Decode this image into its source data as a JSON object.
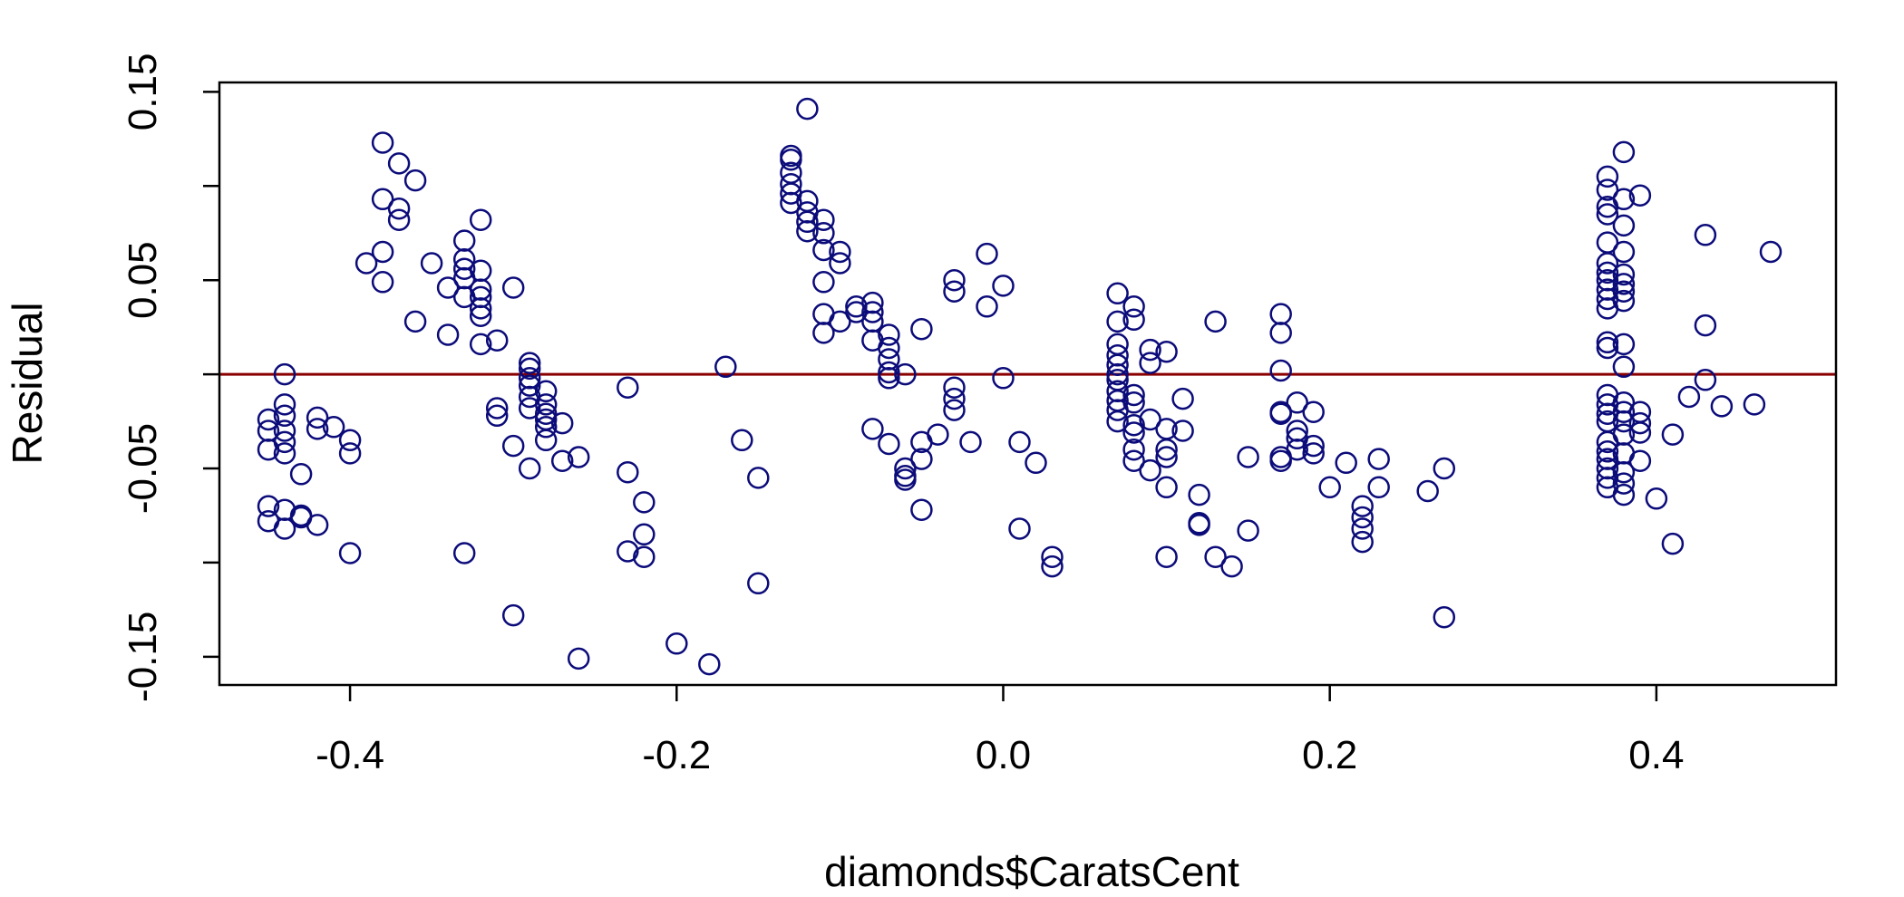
{
  "chart_data": {
    "type": "scatter",
    "title": "",
    "xlabel": "diamonds$CaratsCent",
    "ylabel": "Residual",
    "xlim": [
      -0.48,
      0.51
    ],
    "ylim": [
      -0.165,
      0.155
    ],
    "x_ticks": [
      -0.4,
      -0.2,
      0.0,
      0.2,
      0.4
    ],
    "x_tick_labels": [
      "-0.4",
      "-0.2",
      "0.0",
      "0.2",
      "0.4"
    ],
    "y_ticks": [
      -0.15,
      -0.1,
      -0.05,
      0.0,
      0.05,
      0.1,
      0.15
    ],
    "y_tick_labels": [
      "-0.15",
      "",
      "-0.05",
      "",
      "0.05",
      "",
      "0.15"
    ],
    "grid": false,
    "legend": "none",
    "colors": {
      "points": "#0b0b7a",
      "reference_line": "#8b0000",
      "axes": "#000000"
    },
    "reference_line": {
      "y": 0
    },
    "points": [
      [
        -0.45,
        -0.024
      ],
      [
        -0.45,
        -0.03
      ],
      [
        -0.45,
        -0.04
      ],
      [
        -0.45,
        -0.07
      ],
      [
        -0.45,
        -0.078
      ],
      [
        -0.44,
        0.0
      ],
      [
        -0.44,
        -0.016
      ],
      [
        -0.44,
        -0.022
      ],
      [
        -0.44,
        -0.03
      ],
      [
        -0.44,
        -0.036
      ],
      [
        -0.44,
        -0.042
      ],
      [
        -0.44,
        -0.072
      ],
      [
        -0.44,
        -0.082
      ],
      [
        -0.43,
        -0.053
      ],
      [
        -0.43,
        -0.075
      ],
      [
        -0.43,
        -0.076
      ],
      [
        -0.42,
        -0.023
      ],
      [
        -0.42,
        -0.029
      ],
      [
        -0.42,
        -0.08
      ],
      [
        -0.41,
        -0.028
      ],
      [
        -0.4,
        -0.035
      ],
      [
        -0.4,
        -0.042
      ],
      [
        -0.4,
        -0.095
      ],
      [
        -0.39,
        0.059
      ],
      [
        -0.38,
        0.123
      ],
      [
        -0.38,
        0.093
      ],
      [
        -0.38,
        0.065
      ],
      [
        -0.38,
        0.049
      ],
      [
        -0.37,
        0.112
      ],
      [
        -0.37,
        0.088
      ],
      [
        -0.37,
        0.082
      ],
      [
        -0.36,
        0.103
      ],
      [
        -0.36,
        0.028
      ],
      [
        -0.35,
        0.059
      ],
      [
        -0.34,
        0.046
      ],
      [
        -0.34,
        0.021
      ],
      [
        -0.33,
        0.071
      ],
      [
        -0.33,
        0.061
      ],
      [
        -0.33,
        0.056
      ],
      [
        -0.33,
        0.051
      ],
      [
        -0.33,
        0.041
      ],
      [
        -0.33,
        -0.095
      ],
      [
        -0.32,
        0.082
      ],
      [
        -0.32,
        0.055
      ],
      [
        -0.32,
        0.045
      ],
      [
        -0.32,
        0.041
      ],
      [
        -0.32,
        0.035
      ],
      [
        -0.32,
        0.031
      ],
      [
        -0.32,
        0.016
      ],
      [
        -0.31,
        0.018
      ],
      [
        -0.31,
        -0.018
      ],
      [
        -0.31,
        -0.022
      ],
      [
        -0.3,
        0.046
      ],
      [
        -0.3,
        -0.038
      ],
      [
        -0.3,
        -0.128
      ],
      [
        -0.29,
        0.006
      ],
      [
        -0.29,
        0.003
      ],
      [
        -0.29,
        -0.002
      ],
      [
        -0.29,
        -0.006
      ],
      [
        -0.29,
        -0.012
      ],
      [
        -0.29,
        -0.018
      ],
      [
        -0.29,
        -0.05
      ],
      [
        -0.28,
        -0.009
      ],
      [
        -0.28,
        -0.016
      ],
      [
        -0.28,
        -0.021
      ],
      [
        -0.28,
        -0.024
      ],
      [
        -0.28,
        -0.028
      ],
      [
        -0.28,
        -0.035
      ],
      [
        -0.27,
        -0.026
      ],
      [
        -0.27,
        -0.046
      ],
      [
        -0.26,
        -0.044
      ],
      [
        -0.26,
        -0.151
      ],
      [
        -0.23,
        -0.007
      ],
      [
        -0.23,
        -0.052
      ],
      [
        -0.23,
        -0.094
      ],
      [
        -0.22,
        -0.068
      ],
      [
        -0.22,
        -0.085
      ],
      [
        -0.22,
        -0.097
      ],
      [
        -0.2,
        -0.143
      ],
      [
        -0.18,
        -0.154
      ],
      [
        -0.17,
        0.004
      ],
      [
        -0.16,
        -0.035
      ],
      [
        -0.15,
        -0.055
      ],
      [
        -0.15,
        -0.111
      ],
      [
        -0.13,
        0.116
      ],
      [
        -0.13,
        0.114
      ],
      [
        -0.13,
        0.107
      ],
      [
        -0.13,
        0.101
      ],
      [
        -0.13,
        0.096
      ],
      [
        -0.13,
        0.091
      ],
      [
        -0.12,
        0.141
      ],
      [
        -0.12,
        0.092
      ],
      [
        -0.12,
        0.086
      ],
      [
        -0.12,
        0.081
      ],
      [
        -0.12,
        0.076
      ],
      [
        -0.11,
        0.082
      ],
      [
        -0.11,
        0.075
      ],
      [
        -0.11,
        0.066
      ],
      [
        -0.11,
        0.049
      ],
      [
        -0.11,
        0.032
      ],
      [
        -0.11,
        0.022
      ],
      [
        -0.1,
        0.065
      ],
      [
        -0.1,
        0.059
      ],
      [
        -0.1,
        0.028
      ],
      [
        -0.09,
        0.036
      ],
      [
        -0.09,
        0.033
      ],
      [
        -0.08,
        0.038
      ],
      [
        -0.08,
        0.033
      ],
      [
        -0.08,
        0.028
      ],
      [
        -0.08,
        0.018
      ],
      [
        -0.08,
        -0.029
      ],
      [
        -0.07,
        0.021
      ],
      [
        -0.07,
        0.014
      ],
      [
        -0.07,
        0.008
      ],
      [
        -0.07,
        0.001
      ],
      [
        -0.07,
        -0.002
      ],
      [
        -0.07,
        -0.037
      ],
      [
        -0.06,
        0.0
      ],
      [
        -0.06,
        -0.05
      ],
      [
        -0.06,
        -0.054
      ],
      [
        -0.06,
        -0.056
      ],
      [
        -0.05,
        0.024
      ],
      [
        -0.05,
        -0.036
      ],
      [
        -0.05,
        -0.045
      ],
      [
        -0.05,
        -0.072
      ],
      [
        -0.04,
        -0.032
      ],
      [
        -0.03,
        0.05
      ],
      [
        -0.03,
        0.044
      ],
      [
        -0.03,
        -0.007
      ],
      [
        -0.03,
        -0.013
      ],
      [
        -0.03,
        -0.019
      ],
      [
        -0.02,
        -0.036
      ],
      [
        -0.01,
        0.064
      ],
      [
        -0.01,
        0.036
      ],
      [
        0.0,
        0.047
      ],
      [
        0.0,
        -0.002
      ],
      [
        0.01,
        -0.036
      ],
      [
        0.01,
        -0.082
      ],
      [
        0.02,
        -0.047
      ],
      [
        0.03,
        -0.097
      ],
      [
        0.03,
        -0.102
      ],
      [
        0.07,
        0.043
      ],
      [
        0.07,
        0.028
      ],
      [
        0.07,
        0.016
      ],
      [
        0.07,
        0.01
      ],
      [
        0.07,
        0.005
      ],
      [
        0.07,
        0.0
      ],
      [
        0.07,
        -0.003
      ],
      [
        0.07,
        -0.009
      ],
      [
        0.07,
        -0.014
      ],
      [
        0.07,
        -0.019
      ],
      [
        0.07,
        -0.025
      ],
      [
        0.08,
        0.036
      ],
      [
        0.08,
        0.029
      ],
      [
        0.08,
        -0.011
      ],
      [
        0.08,
        -0.015
      ],
      [
        0.08,
        -0.027
      ],
      [
        0.08,
        -0.031
      ],
      [
        0.08,
        -0.04
      ],
      [
        0.08,
        -0.046
      ],
      [
        0.09,
        0.013
      ],
      [
        0.09,
        0.006
      ],
      [
        0.09,
        -0.024
      ],
      [
        0.09,
        -0.051
      ],
      [
        0.1,
        0.012
      ],
      [
        0.1,
        -0.029
      ],
      [
        0.1,
        -0.04
      ],
      [
        0.1,
        -0.044
      ],
      [
        0.1,
        -0.06
      ],
      [
        0.1,
        -0.097
      ],
      [
        0.11,
        -0.013
      ],
      [
        0.11,
        -0.03
      ],
      [
        0.12,
        -0.064
      ],
      [
        0.12,
        -0.079
      ],
      [
        0.12,
        -0.08
      ],
      [
        0.13,
        0.028
      ],
      [
        0.13,
        -0.097
      ],
      [
        0.14,
        -0.102
      ],
      [
        0.15,
        -0.044
      ],
      [
        0.15,
        -0.083
      ],
      [
        0.17,
        0.032
      ],
      [
        0.17,
        0.022
      ],
      [
        0.17,
        0.002
      ],
      [
        0.17,
        -0.02
      ],
      [
        0.17,
        -0.021
      ],
      [
        0.17,
        -0.044
      ],
      [
        0.17,
        -0.046
      ],
      [
        0.18,
        -0.015
      ],
      [
        0.18,
        -0.03
      ],
      [
        0.18,
        -0.034
      ],
      [
        0.18,
        -0.04
      ],
      [
        0.19,
        -0.02
      ],
      [
        0.19,
        -0.038
      ],
      [
        0.19,
        -0.042
      ],
      [
        0.2,
        -0.06
      ],
      [
        0.21,
        -0.047
      ],
      [
        0.22,
        -0.07
      ],
      [
        0.22,
        -0.076
      ],
      [
        0.22,
        -0.082
      ],
      [
        0.22,
        -0.089
      ],
      [
        0.23,
        -0.045
      ],
      [
        0.23,
        -0.06
      ],
      [
        0.26,
        -0.062
      ],
      [
        0.27,
        -0.05
      ],
      [
        0.27,
        -0.129
      ],
      [
        0.37,
        0.105
      ],
      [
        0.37,
        0.098
      ],
      [
        0.37,
        0.089
      ],
      [
        0.37,
        0.085
      ],
      [
        0.37,
        0.07
      ],
      [
        0.37,
        0.059
      ],
      [
        0.37,
        0.054
      ],
      [
        0.37,
        0.05
      ],
      [
        0.37,
        0.045
      ],
      [
        0.37,
        0.04
      ],
      [
        0.37,
        0.035
      ],
      [
        0.37,
        0.017
      ],
      [
        0.37,
        0.014
      ],
      [
        0.37,
        -0.011
      ],
      [
        0.37,
        -0.016
      ],
      [
        0.37,
        -0.021
      ],
      [
        0.37,
        -0.025
      ],
      [
        0.37,
        -0.036
      ],
      [
        0.37,
        -0.041
      ],
      [
        0.37,
        -0.045
      ],
      [
        0.37,
        -0.05
      ],
      [
        0.37,
        -0.055
      ],
      [
        0.37,
        -0.06
      ],
      [
        0.38,
        0.118
      ],
      [
        0.38,
        0.093
      ],
      [
        0.38,
        0.079
      ],
      [
        0.38,
        0.065
      ],
      [
        0.38,
        0.053
      ],
      [
        0.38,
        0.048
      ],
      [
        0.38,
        0.044
      ],
      [
        0.38,
        0.039
      ],
      [
        0.38,
        0.016
      ],
      [
        0.38,
        0.004
      ],
      [
        0.38,
        -0.015
      ],
      [
        0.38,
        -0.02
      ],
      [
        0.38,
        -0.025
      ],
      [
        0.38,
        -0.032
      ],
      [
        0.38,
        -0.042
      ],
      [
        0.38,
        -0.052
      ],
      [
        0.38,
        -0.058
      ],
      [
        0.38,
        -0.064
      ],
      [
        0.39,
        0.095
      ],
      [
        0.39,
        -0.02
      ],
      [
        0.39,
        -0.026
      ],
      [
        0.39,
        -0.031
      ],
      [
        0.39,
        -0.046
      ],
      [
        0.4,
        -0.066
      ],
      [
        0.41,
        -0.032
      ],
      [
        0.41,
        -0.09
      ],
      [
        0.42,
        -0.012
      ],
      [
        0.43,
        0.074
      ],
      [
        0.43,
        0.026
      ],
      [
        0.43,
        -0.003
      ],
      [
        0.44,
        -0.017
      ],
      [
        0.46,
        -0.016
      ],
      [
        0.47,
        0.065
      ]
    ]
  }
}
